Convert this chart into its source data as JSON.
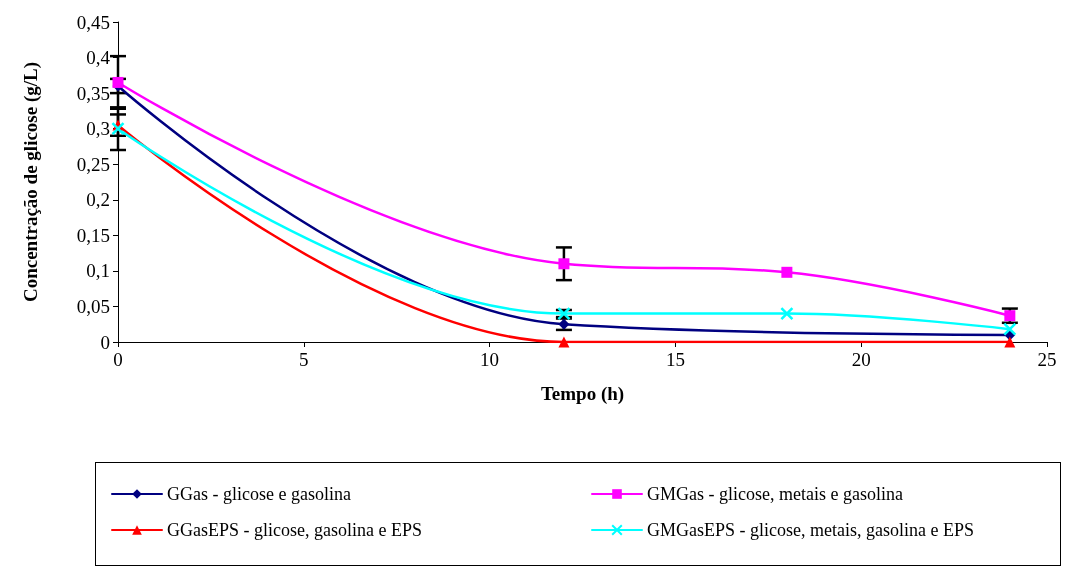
{
  "chart_data": {
    "type": "line",
    "xlabel": "Tempo (h)",
    "ylabel": "Concentração de glicose (g/L)",
    "x": [
      0,
      12,
      18,
      24
    ],
    "xlim": [
      0,
      25
    ],
    "xticks": [
      0,
      5,
      10,
      15,
      20,
      25
    ],
    "ylim": [
      0,
      0.45
    ],
    "yticks": [
      0,
      {
        "value": 0.05,
        "label": "0,05"
      },
      {
        "value": 0.1,
        "label": "0,1"
      },
      {
        "value": 0.15,
        "label": "0,15"
      },
      {
        "value": 0.2,
        "label": "0,2"
      },
      {
        "value": 0.25,
        "label": "0,25"
      },
      {
        "value": 0.3,
        "label": "0,3"
      },
      {
        "value": 0.35,
        "label": "0,35"
      },
      {
        "value": 0.4,
        "label": "0,4"
      },
      {
        "value": 0.45,
        "label": "0,45"
      }
    ],
    "grid": false,
    "legend": "bottom",
    "line_style": "solid",
    "series": [
      {
        "name": "GGas - glicose e gasolina",
        "color": "#000080",
        "marker": "diamond",
        "values": [
          0.36,
          0.025,
          null,
          0.01
        ],
        "errors": [
          0.01,
          0.008,
          null,
          null
        ]
      },
      {
        "name": "GMGas - glicose, metais e gasolina",
        "color": "#ff00ff",
        "marker": "square",
        "values": [
          0.365,
          0.11,
          0.098,
          0.037
        ],
        "errors": [
          0.037,
          0.023,
          null,
          0.01
        ]
      },
      {
        "name": "GGasEPS - glicose, gasolina e EPS",
        "color": "#ff0000",
        "marker": "triangle",
        "values": [
          0.305,
          0,
          null,
          0
        ],
        "errors": [
          0.015,
          null,
          null,
          null
        ]
      },
      {
        "name": "GMGasEPS - glicose, metais, gasolina e EPS",
        "color": "#00ffff",
        "marker": "cross",
        "values": [
          0.3,
          0.04,
          0.04,
          0.018
        ],
        "errors": [
          0.03,
          0.005,
          null,
          null
        ]
      }
    ]
  }
}
